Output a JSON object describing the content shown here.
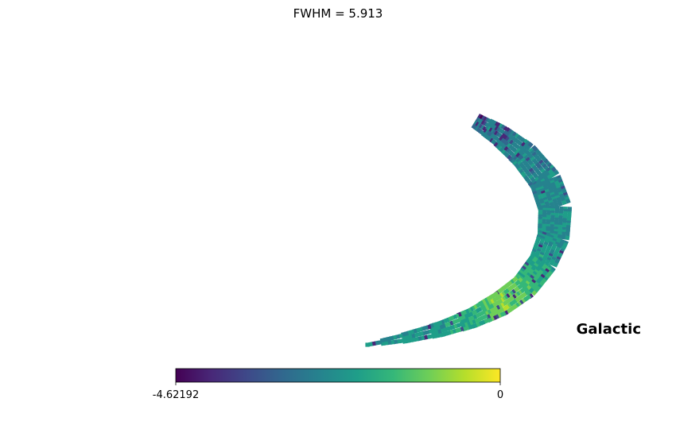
{
  "chart_data": {
    "type": "heatmap",
    "title": "FWHM = 5.913",
    "coordinate_system": "Galactic",
    "colormap": "viridis",
    "colorbar": {
      "min": -4.62192,
      "max": 0,
      "min_label": "-4.62192",
      "max_label": "0",
      "orientation": "horizontal",
      "placement": "bottom"
    },
    "background": "#ffffff"
  },
  "colors": {
    "viridis": [
      "#440154",
      "#482878",
      "#3e4989",
      "#31688e",
      "#26828e",
      "#1f9e89",
      "#35b779",
      "#6ece58",
      "#b5de2b",
      "#fde725"
    ]
  }
}
